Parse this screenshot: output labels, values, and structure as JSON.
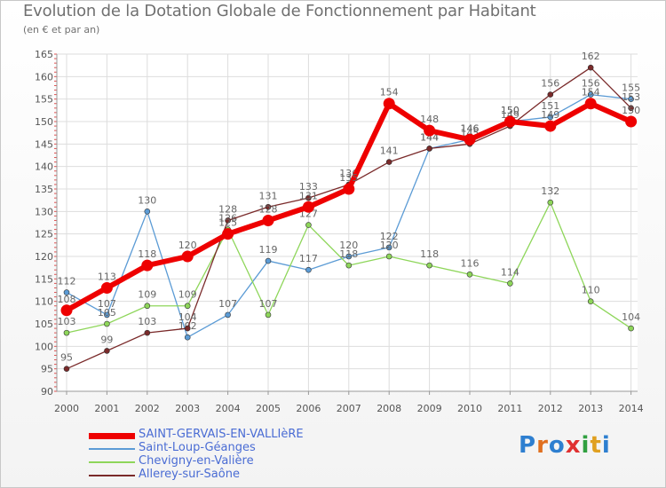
{
  "title": "Evolution de la Dotation Globale de Fonctionnement par Habitant",
  "subtitle": "(en € et par an)",
  "chart_data": {
    "type": "line",
    "x": [
      2000,
      2001,
      2002,
      2003,
      2004,
      2005,
      2006,
      2007,
      2008,
      2009,
      2010,
      2011,
      2012,
      2013,
      2014
    ],
    "ylim": [
      90,
      165
    ],
    "yticks": [
      90,
      95,
      100,
      105,
      110,
      115,
      120,
      125,
      130,
      135,
      140,
      145,
      150,
      155,
      160,
      165
    ],
    "series": [
      {
        "name": "Saint-Loup-Géanges",
        "color": "#5b9bd5",
        "values": [
          112,
          107,
          130,
          102,
          107,
          119,
          117,
          120,
          122,
          144,
          146,
          150,
          151,
          156,
          155
        ],
        "labels": [
          "112",
          "107",
          "130",
          "102",
          "107",
          "119",
          "117",
          "120",
          "122",
          "144",
          "146",
          "150",
          "151",
          "156",
          "155"
        ]
      },
      {
        "name": "Chevigny-en-Valière",
        "color": "#8ed65a",
        "values": [
          103,
          105,
          109,
          109,
          126,
          107,
          127,
          118,
          120,
          118,
          116,
          114,
          132,
          110,
          104
        ],
        "labels": [
          "103",
          "105",
          "109",
          "109",
          "126",
          "107",
          "127",
          "118",
          "120",
          "118",
          "116",
          "114",
          "132",
          "110",
          "104"
        ]
      },
      {
        "name": "Allerey-sur-Saône",
        "color": "#7a2a2a",
        "values": [
          95,
          99,
          103,
          104,
          128,
          131,
          133,
          136,
          141,
          144,
          145,
          149,
          156,
          162,
          153
        ],
        "labels": [
          "95",
          "99",
          "103",
          "104",
          "128",
          "131",
          "133",
          "136",
          "141",
          "144",
          "145",
          "149",
          "156",
          "162",
          "153"
        ]
      },
      {
        "name": "SAINT-GERVAIS-EN-VALLIèRE",
        "color": "#ee0000",
        "values": [
          108,
          113,
          118,
          120,
          125,
          128,
          131,
          135,
          154,
          148,
          146,
          150,
          149,
          154,
          150
        ],
        "labels": [
          "108",
          "113",
          "118",
          "120",
          "125",
          "128",
          "131",
          "135",
          "154",
          "148",
          "146",
          "150",
          "149",
          "154",
          "150"
        ]
      }
    ]
  },
  "legend": [
    {
      "label": "SAINT-GERVAIS-EN-VALLIèRE",
      "color": "#ee0000",
      "text_color": "#4a6cd4"
    },
    {
      "label": "Saint-Loup-Géanges",
      "color": "#5b9bd5",
      "text_color": "#4a6cd4"
    },
    {
      "label": "Chevigny-en-Valière",
      "color": "#8ed65a",
      "text_color": "#4a6cd4"
    },
    {
      "label": "Allerey-sur-Saône",
      "color": "#7a2a2a",
      "text_color": "#4a6cd4"
    }
  ],
  "logo": {
    "letters": [
      "P",
      "r",
      "o",
      "x",
      "i",
      "t",
      "i"
    ],
    "colors": [
      "#2e7fd0",
      "#e07020",
      "#2e7fd0",
      "#e03030",
      "#30a040",
      "#e0a020",
      "#2e7fd0"
    ]
  }
}
